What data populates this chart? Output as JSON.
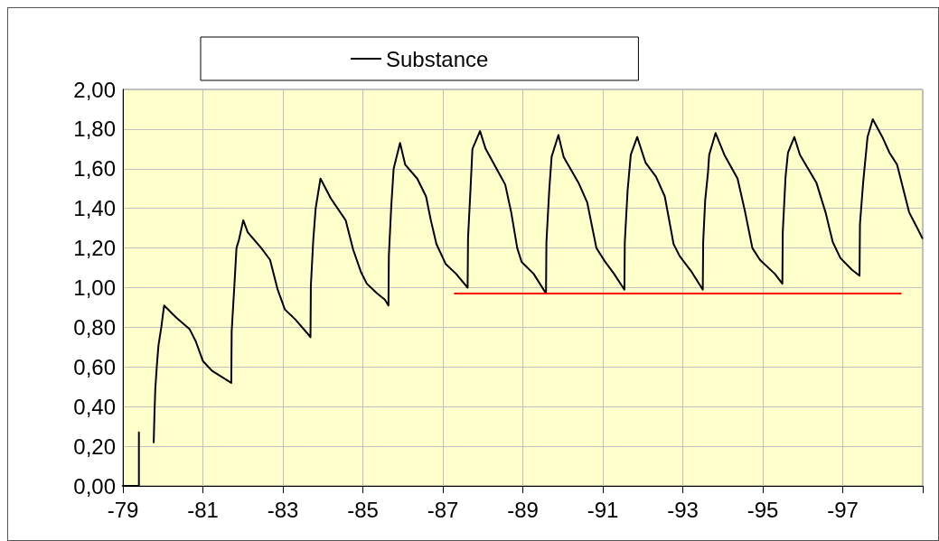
{
  "chart_data": {
    "type": "line",
    "legend": "top",
    "grid": true,
    "marker": "none",
    "line_style": "solid",
    "xlim": [
      -79,
      -99
    ],
    "xticks": [
      -79,
      -81,
      -83,
      -85,
      -87,
      -89,
      -91,
      -93,
      -95,
      -97,
      {
        "value": -99,
        "label": null
      }
    ],
    "ylim": [
      0,
      2
    ],
    "yticks": [
      {
        "value": 0,
        "label": "0,00"
      },
      {
        "value": 0.2,
        "label": "0,20"
      },
      {
        "value": 0.4,
        "label": "0,40"
      },
      {
        "value": 0.6,
        "label": "0,60"
      },
      {
        "value": 0.8,
        "label": "0,80"
      },
      {
        "value": 1,
        "label": "1,00"
      },
      {
        "value": 1.2,
        "label": "1,20"
      },
      {
        "value": 1.4,
        "label": "1,40"
      },
      {
        "value": 1.6,
        "label": "1,60"
      },
      {
        "value": 1.8,
        "label": "1,80"
      },
      {
        "value": 2,
        "label": "2,00"
      }
    ],
    "series": [
      {
        "name": "Substance",
        "color": "#000000",
        "x": [
          -79.0,
          -79.4,
          -79.4,
          -79.42,
          -79.77,
          -79.79,
          -79.81,
          -79.85,
          -79.89,
          -79.96,
          -80.03,
          -80.33,
          -80.67,
          -80.82,
          -81.0,
          -81.23,
          -81.71,
          -81.72,
          -81.79,
          -81.84,
          -81.9,
          -82.01,
          -82.12,
          -82.46,
          -82.68,
          -82.87,
          -83.05,
          -83.31,
          -83.61,
          -83.69,
          -83.7,
          -83.76,
          -83.82,
          -83.94,
          -84.2,
          -84.57,
          -84.76,
          -84.95,
          -85.1,
          -85.36,
          -85.55,
          -85.64,
          -85.65,
          -85.71,
          -85.77,
          -85.93,
          -86.06,
          -86.36,
          -86.58,
          -86.7,
          -86.84,
          -87.07,
          -87.33,
          -87.62,
          -87.63,
          -87.69,
          -87.74,
          -87.93,
          -88.07,
          -88.37,
          -88.56,
          -88.71,
          -88.86,
          -88.97,
          -89.27,
          -89.58,
          -89.59,
          -89.66,
          -89.72,
          -89.89,
          -90.02,
          -90.39,
          -90.61,
          -90.84,
          -91.06,
          -91.28,
          -91.54,
          -91.55,
          -91.62,
          -91.7,
          -91.86,
          -92.07,
          -92.33,
          -92.55,
          -92.77,
          -92.92,
          -93.22,
          -93.5,
          -93.51,
          -93.56,
          -93.63,
          -93.66,
          -93.82,
          -94.04,
          -94.37,
          -94.56,
          -94.74,
          -94.93,
          -95.3,
          -95.49,
          -95.5,
          -95.57,
          -95.63,
          -95.79,
          -95.93,
          -96.34,
          -96.57,
          -96.75,
          -96.94,
          -97.23,
          -97.42,
          -97.43,
          -97.51,
          -97.62,
          -97.75,
          -97.99,
          -98.17,
          -98.36,
          -98.66,
          -98.84,
          -98.99
        ],
        "values": [
          0,
          0,
          0.27,
          null,
          0.22,
          0.37,
          0.49,
          0.61,
          0.71,
          0.8,
          0.91,
          0.85,
          0.79,
          0.73,
          0.63,
          0.58,
          0.52,
          0.78,
          1.02,
          1.2,
          1.24,
          1.34,
          1.28,
          1.2,
          1.14,
          0.99,
          0.89,
          0.84,
          0.77,
          0.75,
          1.01,
          1.24,
          1.4,
          1.55,
          1.45,
          1.34,
          1.19,
          1.08,
          1.02,
          0.97,
          0.94,
          0.91,
          1.16,
          1.41,
          1.6,
          1.73,
          1.62,
          1.55,
          1.46,
          1.34,
          1.22,
          1.12,
          1.07,
          1.0,
          1.25,
          1.49,
          1.7,
          1.79,
          1.7,
          1.59,
          1.52,
          1.38,
          1.2,
          1.13,
          1.07,
          0.97,
          1.23,
          1.49,
          1.66,
          1.77,
          1.66,
          1.53,
          1.43,
          1.2,
          1.13,
          1.07,
          0.99,
          1.23,
          1.49,
          1.67,
          1.76,
          1.63,
          1.56,
          1.46,
          1.22,
          1.16,
          1.08,
          0.99,
          1.23,
          1.44,
          1.58,
          1.67,
          1.78,
          1.67,
          1.55,
          1.38,
          1.2,
          1.14,
          1.07,
          1.02,
          1.28,
          1.56,
          1.68,
          1.76,
          1.67,
          1.53,
          1.38,
          1.23,
          1.15,
          1.09,
          1.06,
          1.32,
          1.53,
          1.76,
          1.85,
          1.76,
          1.68,
          1.62,
          1.38,
          1.31,
          1.25
        ]
      },
      {
        "color": "#ff0000",
        "x": [
          -87.3,
          -98.45
        ],
        "values": [
          0.97,
          0.97
        ]
      }
    ]
  }
}
